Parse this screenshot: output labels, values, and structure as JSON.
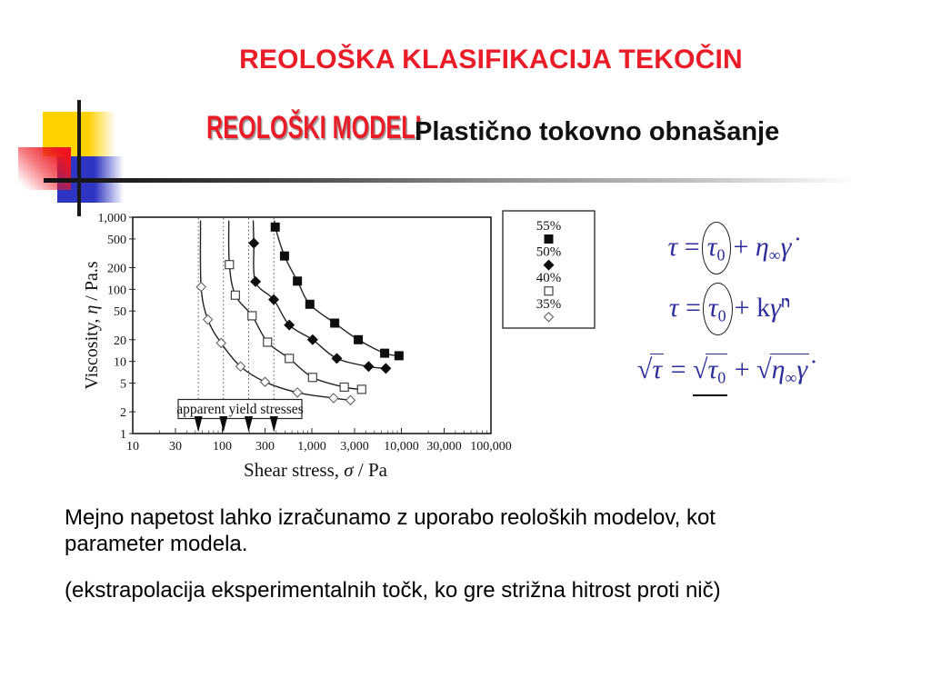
{
  "slide": {
    "title": "REOLOŠKA KLASIFIKACIJA TEKOČIN",
    "subtitle_red": "REOLOŠKI MODELI",
    "subtitle_black": "Plastično tokovno obnašanje",
    "body": {
      "p1_l1": "Mejno napetost lahko izračunamo z uporabo reoloških modelov, kot",
      "p1_l2": "parameter modela.",
      "p2": "(ekstrapolacija eksperimentalnih točk, ko gre strižna hitrost proti nič)"
    },
    "colors": {
      "title_red": "#ea1c28",
      "equation_blue": "#2d2d9b",
      "accent_yellow": "#ffd100",
      "accent_blue": "#2e35c2",
      "accent_red": "#ee1520"
    }
  },
  "equations": {
    "eq1": {
      "lhs": "τ",
      "rel": "=",
      "circled_tau": "τ",
      "circled_sub": "0",
      "plus": "+",
      "eta": "η",
      "eta_sub": "∞",
      "gamma_dot": "γ̇"
    },
    "eq2": {
      "lhs": "τ",
      "rel": "=",
      "circled_tau": "τ",
      "circled_sub": "0",
      "plus": "+",
      "k": "k",
      "gamma_dot": "γ̇",
      "exp": "n"
    },
    "eq3": {
      "rad": "√",
      "lhs": "τ",
      "rel": "=",
      "tau0": "τ",
      "tau0_sub": "0",
      "plus": "+",
      "eta": "η",
      "eta_sub": "∞",
      "gamma_dot": "γ̇"
    }
  },
  "chart_data": {
    "type": "line",
    "title": "",
    "xscale": "log",
    "yscale": "log",
    "xlim": [
      10,
      100000
    ],
    "ylim": [
      1,
      1000
    ],
    "xlabel_parts": [
      "Shear stress, ",
      "σ",
      " / Pa"
    ],
    "ylabel_parts": [
      "Viscosity, ",
      "η",
      " / Pa.s"
    ],
    "xticks": {
      "values": [
        10,
        30,
        100,
        300,
        1000,
        3000,
        10000,
        30000,
        100000
      ],
      "labels": [
        "10",
        "30",
        "100",
        "300",
        "1,000",
        "3,000",
        "10,000",
        "30,000",
        "100,000"
      ]
    },
    "yticks": {
      "values": [
        1000,
        500,
        200,
        100,
        50,
        20,
        10,
        5,
        2,
        1
      ],
      "labels": [
        "1,000",
        "500",
        "200",
        "100",
        "50",
        "20",
        "10",
        "5",
        "2",
        "1"
      ]
    },
    "annotation": "apparent yield stresses",
    "apparent_yield_stresses": [
      54,
      103,
      197,
      377
    ],
    "grid": false,
    "legend": {
      "position": "upper right",
      "entries": [
        "55%",
        "50%",
        "40%",
        "35%"
      ]
    },
    "series": [
      {
        "name": "55%",
        "marker": "square-filled",
        "yield_stress": 377,
        "points": [
          [
            390,
            730
          ],
          [
            495,
            290
          ],
          [
            690,
            130
          ],
          [
            950,
            62
          ],
          [
            1800,
            34
          ],
          [
            3300,
            20
          ],
          [
            6500,
            13
          ],
          [
            9400,
            12
          ]
        ]
      },
      {
        "name": "50%",
        "marker": "diamond-filled",
        "yield_stress": 197,
        "points": [
          [
            225,
            435
          ],
          [
            235,
            128
          ],
          [
            375,
            72
          ],
          [
            560,
            32
          ],
          [
            1020,
            20
          ],
          [
            1900,
            11
          ],
          [
            4300,
            8.5
          ],
          [
            6700,
            8
          ]
        ]
      },
      {
        "name": "40%",
        "marker": "square-open",
        "yield_stress": 103,
        "points": [
          [
            120,
            220
          ],
          [
            140,
            83
          ],
          [
            215,
            43
          ],
          [
            320,
            18.5
          ],
          [
            560,
            11
          ],
          [
            1020,
            6
          ],
          [
            2300,
            4.4
          ],
          [
            3600,
            4.1
          ]
        ]
      },
      {
        "name": "35%",
        "marker": "diamond-open",
        "yield_stress": 54,
        "points": [
          [
            58,
            108
          ],
          [
            69,
            38
          ],
          [
            97,
            18
          ],
          [
            160,
            8.5
          ],
          [
            300,
            5.2
          ],
          [
            690,
            3.7
          ],
          [
            1750,
            3.1
          ],
          [
            2700,
            2.9
          ]
        ]
      }
    ]
  }
}
